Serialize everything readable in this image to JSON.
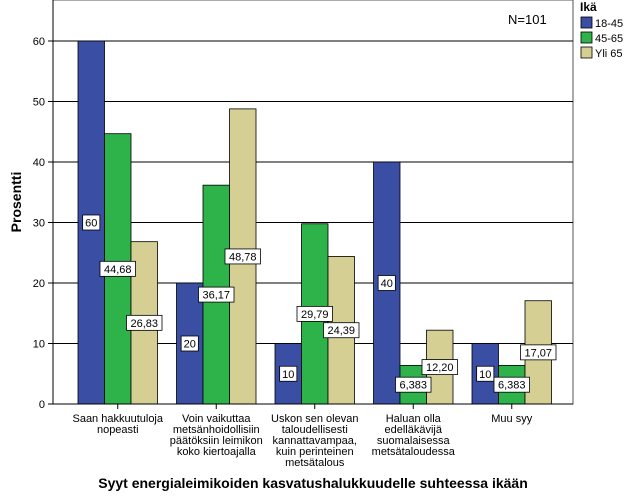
{
  "chart_data": {
    "type": "bar",
    "xlabel": "Syyt energialeimikoiden kasvatushalukkuudelle suhteessa ikään",
    "ylabel": "Prosentti",
    "ylim": [
      0,
      66
    ],
    "yticks": [
      0,
      10,
      20,
      30,
      40,
      50,
      60
    ],
    "grid": true,
    "legend_position": "right",
    "legend_title": "Ikä",
    "annotation": "N=101",
    "categories": [
      [
        "Saan hakkuutuloja",
        "nopeasti"
      ],
      [
        "Voin vaikuttaa",
        "metsänhoidollisiin",
        "päätöksiin leimikon",
        "koko kiertoajalla"
      ],
      [
        "Uskon sen olevan",
        "taloudellisesti",
        "kannattavampaa,",
        "kuin perinteinen",
        "metsätalous"
      ],
      [
        "Haluan olla",
        "edelläkävijä",
        "suomalaisessa",
        "metsätaloudessa"
      ],
      [
        "Muu syy"
      ]
    ],
    "series": [
      {
        "name": "18-45",
        "color": "#3a4ea3",
        "values": [
          60,
          20,
          10,
          40,
          10
        ],
        "labels": [
          "60",
          "20",
          "10",
          "40",
          "10"
        ]
      },
      {
        "name": "45-65",
        "color": "#2db34a",
        "values": [
          44.68,
          36.17,
          29.79,
          6.383,
          6.383
        ],
        "labels": [
          "44,68",
          "36,17",
          "29,79",
          "6,383",
          "6,383"
        ]
      },
      {
        "name": "Yli 65",
        "color": "#d6cf94",
        "values": [
          26.83,
          48.78,
          24.39,
          12.2,
          17.07
        ],
        "labels": [
          "26,83",
          "48,78",
          "24,39",
          "12,20",
          "17,07"
        ]
      }
    ]
  }
}
